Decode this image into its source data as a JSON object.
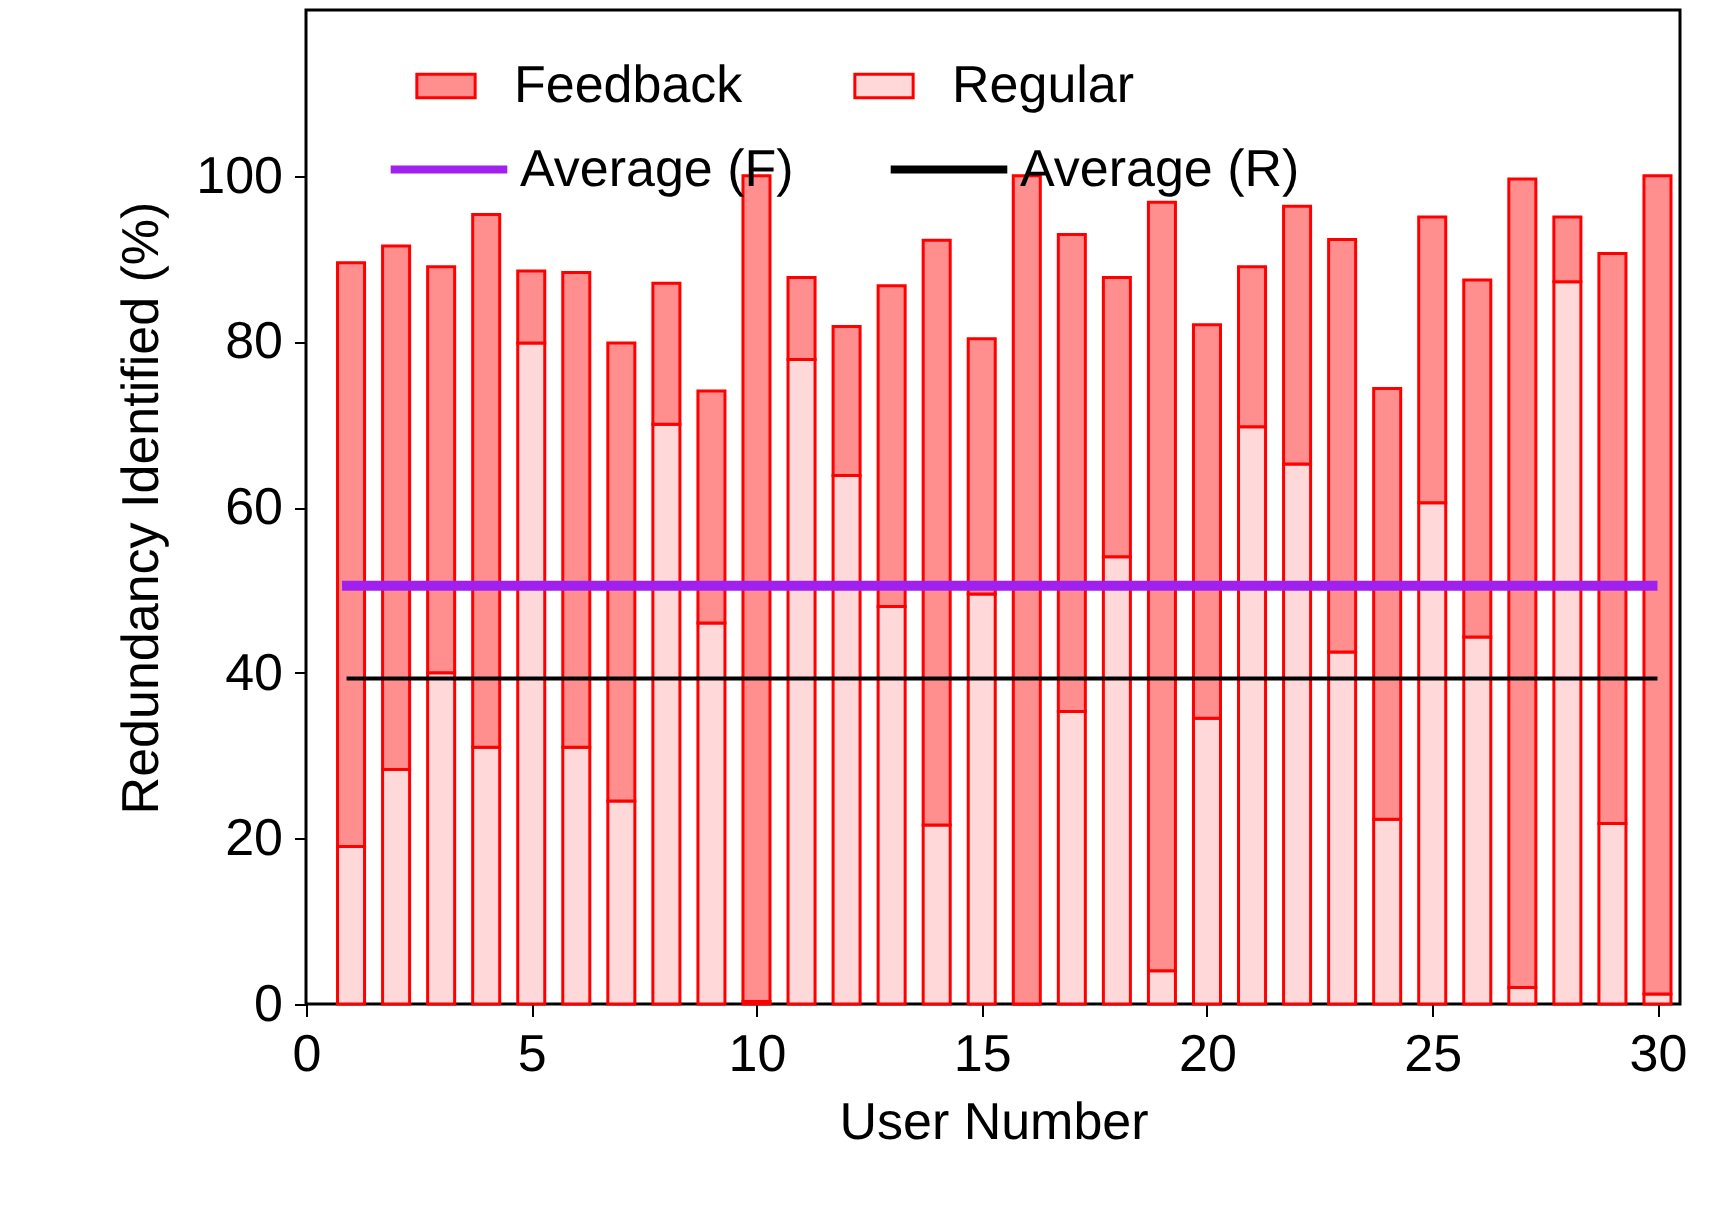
{
  "chart_data": {
    "type": "bar",
    "stacked": true,
    "xlabel": "User Number",
    "ylabel": "Redundancy Identified (%)",
    "x": [
      1,
      2,
      3,
      4,
      5,
      6,
      7,
      8,
      9,
      10,
      11,
      12,
      13,
      14,
      15,
      16,
      17,
      18,
      19,
      20,
      21,
      22,
      23,
      24,
      25,
      26,
      27,
      28,
      29,
      30
    ],
    "series": [
      {
        "name": "Regular",
        "color": "#ffd9d9",
        "values": [
          19,
          28.3,
          40,
          31,
          79.8,
          31,
          24.5,
          70,
          46,
          0.3,
          77.8,
          63.8,
          48,
          21.6,
          49.5,
          0,
          35.3,
          54,
          4,
          34.5,
          69.7,
          65.2,
          42.5,
          22.3,
          60.5,
          44.3,
          2,
          87.2,
          21.8,
          1.2
        ]
      },
      {
        "name": "Feedback",
        "color": "#ff8f8f",
        "values": [
          70.5,
          63.2,
          49,
          64.3,
          8.7,
          57.3,
          55.3,
          17,
          28,
          99.7,
          9.9,
          18,
          38.7,
          70.6,
          30.8,
          100,
          57.6,
          33.7,
          92.8,
          47.5,
          19.3,
          31.1,
          49.8,
          52,
          34.5,
          43.1,
          97.6,
          7.8,
          68.8,
          98.8
        ]
      },
      {
        "name": "Average (F)",
        "type": "line",
        "color": "#a020f0",
        "x": [
          0.8,
          30
        ],
        "values": [
          50.5,
          50.5
        ]
      },
      {
        "name": "Average (R)",
        "type": "line",
        "color": "#000000",
        "x": [
          0.9,
          30
        ],
        "values": [
          39.3,
          39.3
        ]
      }
    ],
    "xlim": [
      0,
      30.5
    ],
    "xticks": [
      0,
      5,
      10,
      15,
      20,
      25,
      30
    ],
    "ylim": [
      0,
      120
    ],
    "yticks": [
      0,
      20,
      40,
      60,
      80,
      100
    ],
    "legend": "top",
    "grid": false
  }
}
